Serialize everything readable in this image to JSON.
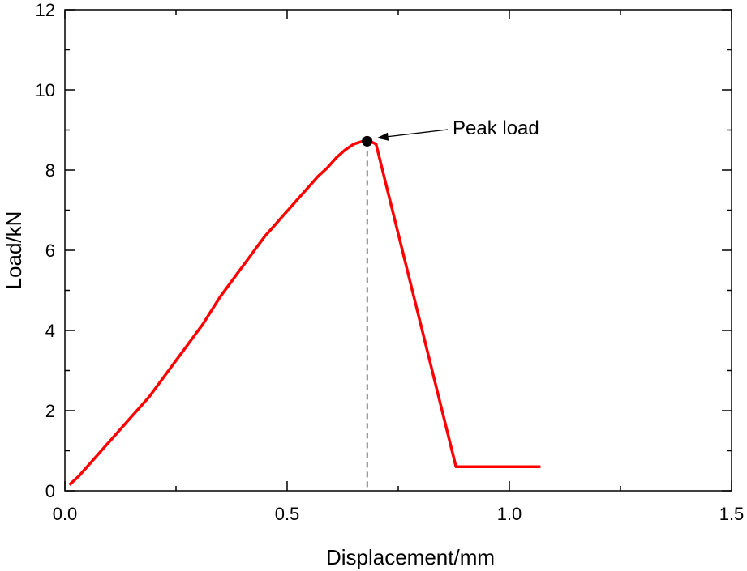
{
  "chart_data": {
    "type": "line",
    "xlabel": "Displacement/mm",
    "ylabel": "Load/kN",
    "xlim": [
      0,
      1.5
    ],
    "ylim": [
      0,
      12
    ],
    "x_ticks": [
      0.0,
      0.5,
      1.0,
      1.5
    ],
    "x_tick_labels": [
      "0.0",
      "0.5",
      "1.0",
      "1.5"
    ],
    "x_minor_ticks": [
      0.25,
      0.75,
      1.25
    ],
    "y_ticks": [
      0,
      2,
      4,
      6,
      8,
      10,
      12
    ],
    "y_tick_labels": [
      "0",
      "2",
      "4",
      "6",
      "8",
      "10",
      "12"
    ],
    "y_minor_ticks": [
      1,
      3,
      5,
      7,
      9,
      11
    ],
    "grid": false,
    "series": [
      {
        "color": "#ff0000",
        "x": [
          0.01,
          0.03,
          0.05,
          0.07,
          0.09,
          0.11,
          0.13,
          0.15,
          0.17,
          0.19,
          0.21,
          0.23,
          0.25,
          0.27,
          0.29,
          0.31,
          0.33,
          0.35,
          0.37,
          0.39,
          0.41,
          0.43,
          0.45,
          0.47,
          0.49,
          0.51,
          0.53,
          0.55,
          0.57,
          0.59,
          0.61,
          0.63,
          0.65,
          0.67,
          0.68,
          0.69,
          0.7,
          0.88,
          1.07
        ],
        "y": [
          0.15,
          0.35,
          0.6,
          0.85,
          1.1,
          1.35,
          1.6,
          1.85,
          2.1,
          2.35,
          2.65,
          2.95,
          3.25,
          3.55,
          3.85,
          4.15,
          4.5,
          4.85,
          5.15,
          5.45,
          5.75,
          6.05,
          6.35,
          6.6,
          6.85,
          7.1,
          7.35,
          7.6,
          7.85,
          8.05,
          8.3,
          8.5,
          8.65,
          8.72,
          8.72,
          8.7,
          8.65,
          0.6,
          0.6
        ]
      }
    ],
    "peak": {
      "x": 0.68,
      "y": 8.72
    },
    "annotation": {
      "text": "Peak load"
    }
  }
}
